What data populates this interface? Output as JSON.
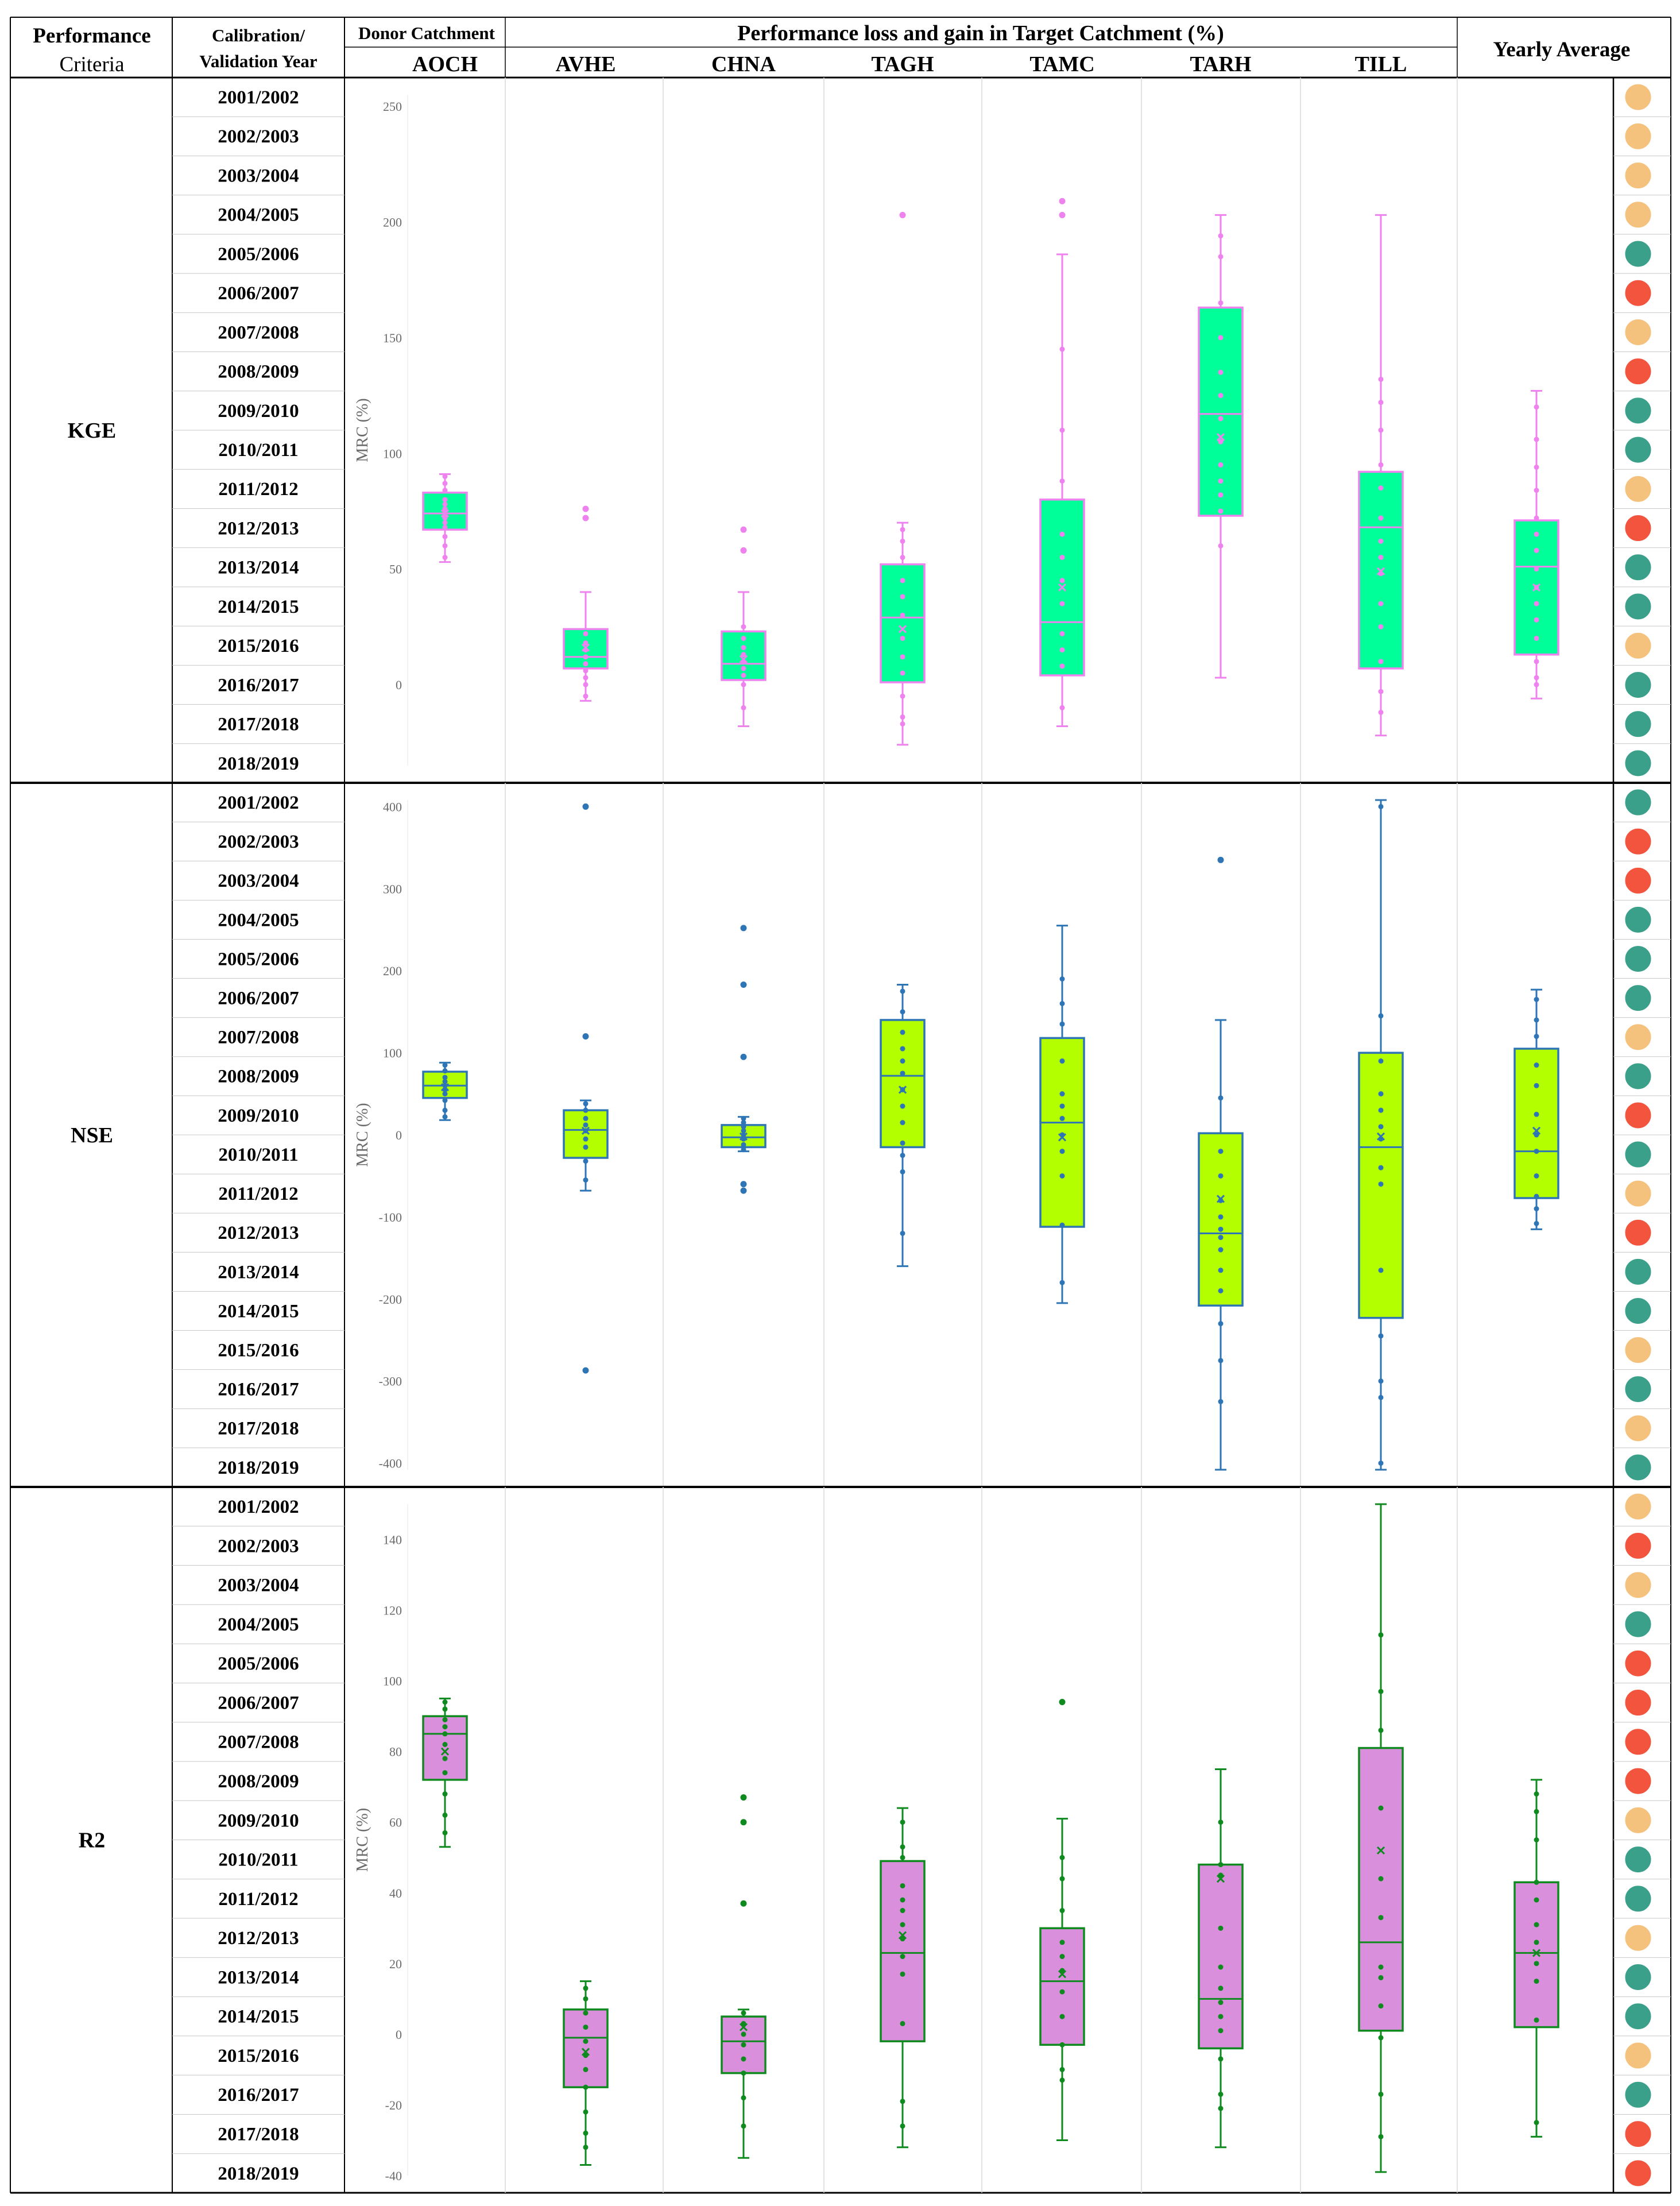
{
  "header": {
    "criteria_line1": "Performance",
    "criteria_line2": "Criteria",
    "year_line1": "Calibration/",
    "year_line2": "Validation Year",
    "donor_label": "Donor Catchment",
    "loss_gain_label": "Performance loss and gain in Target Catchment (%)",
    "yearly_average": "Yearly Average"
  },
  "catchments": [
    "AOCH",
    "AVHE",
    "CHNA",
    "TAGH",
    "TAMC",
    "TARH",
    "TILL"
  ],
  "years": [
    "2001/2002",
    "2002/2003",
    "2003/2004",
    "2004/2005",
    "2005/2006",
    "2006/2007",
    "2007/2008",
    "2008/2009",
    "2009/2010",
    "2010/2011",
    "2011/2012",
    "2012/2013",
    "2013/2014",
    "2014/2015",
    "2015/2016",
    "2016/2017",
    "2017/2018",
    "2018/2019"
  ],
  "colors": {
    "teal": "#3aa08a",
    "red": "#f2543d",
    "peach": "#f5c27d",
    "grid": "#d9d9d9",
    "border": "#000000"
  },
  "chart_data": [
    {
      "type": "box",
      "criterion": "KGE",
      "ylabel": "MRC (%)",
      "ylim": [
        -35,
        255
      ],
      "yticks": [
        0,
        50,
        100,
        150,
        200,
        250
      ],
      "colors": {
        "fill": "#00ff99",
        "stroke": "#ee82ee"
      },
      "categories": [
        "AOCH",
        "AVHE",
        "CHNA",
        "TAGH",
        "TAMC",
        "TARH",
        "TILL",
        "Yearly Average"
      ],
      "boxes": [
        {
          "min": 53,
          "q1": 67,
          "median": 74,
          "q3": 83,
          "max": 91,
          "mean": 74,
          "points": [
            55,
            60,
            64,
            68,
            70,
            72,
            74,
            76,
            78,
            80,
            84,
            87,
            90
          ],
          "outliers": []
        },
        {
          "min": -7,
          "q1": 7,
          "median": 12,
          "q3": 24,
          "max": 40,
          "mean": 16,
          "points": [
            -5,
            0,
            3,
            6,
            9,
            12,
            15,
            18,
            22
          ],
          "outliers": [
            72,
            76
          ]
        },
        {
          "min": -18,
          "q1": 2,
          "median": 9,
          "q3": 23,
          "max": 40,
          "mean": 11,
          "points": [
            -10,
            0,
            4,
            7,
            10,
            13,
            16,
            20,
            25
          ],
          "outliers": [
            58,
            67
          ]
        },
        {
          "min": -26,
          "q1": 1,
          "median": 29,
          "q3": 52,
          "max": 70,
          "mean": 24,
          "points": [
            -17,
            -14,
            -5,
            5,
            12,
            20,
            30,
            38,
            45,
            55,
            62,
            67
          ],
          "outliers": [
            203
          ]
        },
        {
          "min": -18,
          "q1": 4,
          "median": 27,
          "q3": 80,
          "max": 186,
          "mean": 42,
          "points": [
            -10,
            8,
            15,
            22,
            35,
            45,
            55,
            65,
            88,
            110,
            145
          ],
          "outliers": [
            203,
            209
          ]
        },
        {
          "min": 3,
          "q1": 73,
          "median": 117,
          "q3": 163,
          "max": 203,
          "mean": 107,
          "points": [
            60,
            75,
            82,
            88,
            95,
            105,
            115,
            125,
            135,
            150,
            165,
            185,
            194
          ],
          "outliers": []
        },
        {
          "min": -22,
          "q1": 7,
          "median": 68,
          "q3": 92,
          "max": 203,
          "mean": 49,
          "points": [
            -12,
            -3,
            10,
            25,
            35,
            48,
            55,
            62,
            72,
            85,
            95,
            110,
            122,
            132
          ],
          "outliers": []
        },
        {
          "min": -6,
          "q1": 13,
          "median": 51,
          "q3": 71,
          "max": 127,
          "mean": 42,
          "points": [
            0,
            3,
            10,
            20,
            28,
            35,
            42,
            50,
            58,
            65,
            72,
            84,
            94,
            106,
            120
          ],
          "outliers": []
        }
      ],
      "indicators": [
        "peach",
        "peach",
        "peach",
        "peach",
        "teal",
        "red",
        "peach",
        "red",
        "teal",
        "teal",
        "peach",
        "red",
        "teal",
        "teal",
        "peach",
        "teal",
        "teal",
        "teal"
      ]
    },
    {
      "type": "box",
      "criterion": "NSE",
      "ylabel": "MRC (%)",
      "ylim": [
        -408,
        408
      ],
      "yticks": [
        -400,
        -300,
        -200,
        -100,
        0,
        100,
        200,
        300,
        400
      ],
      "colors": {
        "fill": "#b3ff00",
        "stroke": "#2e75b6"
      },
      "categories": [
        "AOCH",
        "AVHE",
        "CHNA",
        "TAGH",
        "TAMC",
        "TARH",
        "TILL",
        "Yearly Average"
      ],
      "boxes": [
        {
          "min": 18,
          "q1": 45,
          "median": 60,
          "q3": 77,
          "max": 88,
          "mean": 58,
          "points": [
            22,
            30,
            42,
            50,
            55,
            60,
            65,
            70,
            78,
            85
          ],
          "outliers": []
        },
        {
          "min": -68,
          "q1": -28,
          "median": 6,
          "q3": 30,
          "max": 42,
          "mean": 5,
          "points": [
            -55,
            -32,
            -15,
            -5,
            5,
            12,
            20,
            30,
            38
          ],
          "outliers": [
            120,
            400,
            -287
          ]
        },
        {
          "min": -20,
          "q1": -15,
          "median": -3,
          "q3": 12,
          "max": 22,
          "mean": -2,
          "points": [
            -18,
            -12,
            -5,
            0,
            5,
            10,
            15,
            20
          ],
          "outliers": [
            95,
            183,
            252,
            -60,
            -68
          ]
        },
        {
          "min": -160,
          "q1": -15,
          "median": 72,
          "q3": 140,
          "max": 183,
          "mean": 55,
          "points": [
            -120,
            -45,
            -25,
            -10,
            15,
            35,
            55,
            75,
            90,
            105,
            125,
            150,
            175
          ],
          "outliers": []
        },
        {
          "min": -205,
          "q1": -112,
          "median": 15,
          "q3": 118,
          "max": 255,
          "mean": -3,
          "points": [
            -180,
            -110,
            -50,
            -20,
            0,
            20,
            35,
            50,
            90,
            135,
            160,
            190
          ],
          "outliers": []
        },
        {
          "min": -408,
          "q1": -208,
          "median": -120,
          "q3": 2,
          "max": 140,
          "mean": -78,
          "points": [
            -325,
            -275,
            -230,
            -190,
            -165,
            -140,
            -125,
            -115,
            -100,
            -80,
            -50,
            -20,
            45
          ],
          "outliers": [
            335
          ]
        },
        {
          "min": -408,
          "q1": -223,
          "median": -15,
          "q3": 100,
          "max": 408,
          "mean": -2,
          "points": [
            -400,
            -320,
            -300,
            -245,
            -165,
            -60,
            -40,
            -5,
            10,
            30,
            50,
            90,
            145,
            400
          ],
          "outliers": []
        },
        {
          "min": -115,
          "q1": -77,
          "median": -20,
          "q3": 105,
          "max": 177,
          "mean": 5,
          "points": [
            -108,
            -90,
            -75,
            -50,
            -20,
            0,
            25,
            60,
            85,
            120,
            140,
            165
          ],
          "outliers": []
        }
      ],
      "indicators": [
        "teal",
        "red",
        "red",
        "teal",
        "teal",
        "teal",
        "peach",
        "teal",
        "red",
        "teal",
        "peach",
        "red",
        "teal",
        "teal",
        "peach",
        "teal",
        "peach",
        "teal"
      ]
    },
    {
      "type": "box",
      "criterion": "R2",
      "ylabel": "MRC (%)",
      "ylim": [
        -40,
        150
      ],
      "yticks": [
        -40,
        -20,
        0,
        20,
        40,
        60,
        80,
        100,
        120,
        140
      ],
      "colors": {
        "fill": "#da8fdc",
        "stroke": "#0f8a1f"
      },
      "categories": [
        "AOCH",
        "AVHE",
        "CHNA",
        "TAGH",
        "TAMC",
        "TARH",
        "TILL",
        "Yearly Average"
      ],
      "boxes": [
        {
          "min": 53,
          "q1": 72,
          "median": 85,
          "q3": 90,
          "max": 95,
          "mean": 80,
          "points": [
            57,
            62,
            68,
            74,
            78,
            82,
            85,
            87,
            89,
            92,
            94
          ],
          "outliers": []
        },
        {
          "min": -37,
          "q1": -15,
          "median": -1,
          "q3": 7,
          "max": 15,
          "mean": -5,
          "points": [
            -32,
            -28,
            -22,
            -15,
            -10,
            -6,
            -2,
            2,
            6,
            10,
            13
          ],
          "outliers": []
        },
        {
          "min": -35,
          "q1": -11,
          "median": -2,
          "q3": 5,
          "max": 7,
          "mean": 2,
          "points": [
            -26,
            -18,
            -11,
            -7,
            -3,
            0,
            3,
            6
          ],
          "outliers": [
            37,
            60,
            67
          ]
        },
        {
          "min": -32,
          "q1": -2,
          "median": 23,
          "q3": 49,
          "max": 64,
          "mean": 28,
          "points": [
            -26,
            -19,
            3,
            17,
            22,
            27,
            31,
            35,
            38,
            42,
            50,
            53,
            60
          ],
          "outliers": []
        },
        {
          "min": -30,
          "q1": -3,
          "median": 15,
          "q3": 30,
          "max": 61,
          "mean": 17,
          "points": [
            -13,
            -10,
            -3,
            5,
            12,
            18,
            22,
            26,
            35,
            44,
            50
          ],
          "outliers": [
            94
          ]
        },
        {
          "min": -32,
          "q1": -4,
          "median": 10,
          "q3": 48,
          "max": 75,
          "mean": 44,
          "points": [
            -21,
            -17,
            -7,
            1,
            5,
            9,
            13,
            19,
            30,
            45,
            48,
            60
          ],
          "outliers": []
        },
        {
          "min": -39,
          "q1": 1,
          "median": 26,
          "q3": 81,
          "max": 150,
          "mean": 52,
          "points": [
            -29,
            -17,
            -1,
            8,
            16,
            19,
            33,
            44,
            64,
            86,
            97,
            113
          ],
          "outliers": []
        },
        {
          "min": -29,
          "q1": 2,
          "median": 23,
          "q3": 43,
          "max": 72,
          "mean": 23,
          "points": [
            -25,
            4,
            15,
            20,
            26,
            31,
            38,
            43,
            55,
            63,
            68
          ],
          "outliers": []
        }
      ],
      "indicators": [
        "peach",
        "red",
        "peach",
        "teal",
        "red",
        "red",
        "red",
        "red",
        "peach",
        "teal",
        "teal",
        "peach",
        "teal",
        "teal",
        "peach",
        "teal",
        "red",
        "red"
      ]
    }
  ]
}
